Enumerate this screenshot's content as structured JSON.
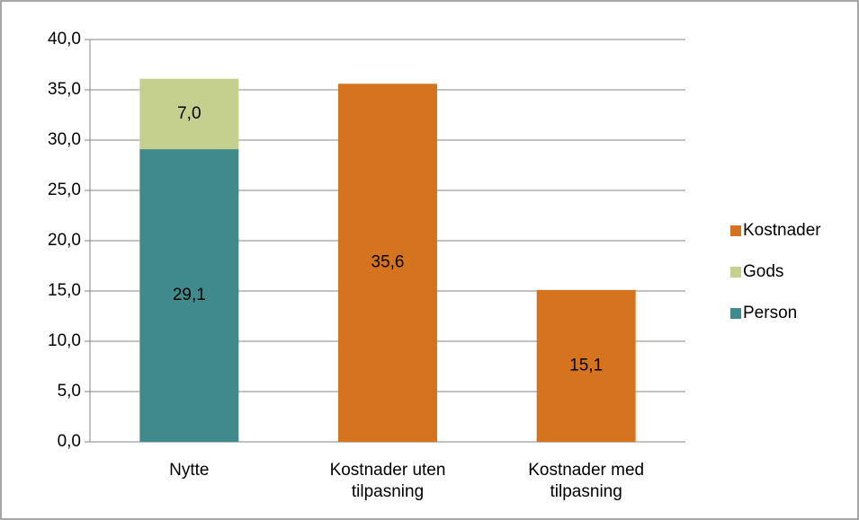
{
  "chart_data": {
    "type": "stacked_bar",
    "categories": [
      "Nytte",
      "Kostnader uten tilpasning",
      "Kostnader med tilpasning"
    ],
    "series": [
      {
        "name": "Person",
        "color": "#418a8b",
        "values": [
          29.1,
          null,
          null
        ],
        "value_labels": [
          "29,1",
          null,
          null
        ]
      },
      {
        "name": "Gods",
        "color": "#c5d08f",
        "values": [
          7.0,
          null,
          null
        ],
        "value_labels": [
          "7,0",
          null,
          null
        ]
      },
      {
        "name": "Kostnader",
        "color": "#d5731f",
        "values": [
          null,
          35.6,
          15.1
        ],
        "value_labels": [
          null,
          "35,6",
          "15,1"
        ]
      }
    ],
    "ylim": [
      0,
      40
    ],
    "yticks": [
      {
        "value": 0,
        "label": "0,0"
      },
      {
        "value": 5,
        "label": "5,0"
      },
      {
        "value": 10,
        "label": "10,0"
      },
      {
        "value": 15,
        "label": "15,0"
      },
      {
        "value": 20,
        "label": "20,0"
      },
      {
        "value": 25,
        "label": "25,0"
      },
      {
        "value": 30,
        "label": "30,0"
      },
      {
        "value": 35,
        "label": "35,0"
      },
      {
        "value": 40,
        "label": "40,0"
      }
    ],
    "grid": true,
    "legend": "right"
  }
}
